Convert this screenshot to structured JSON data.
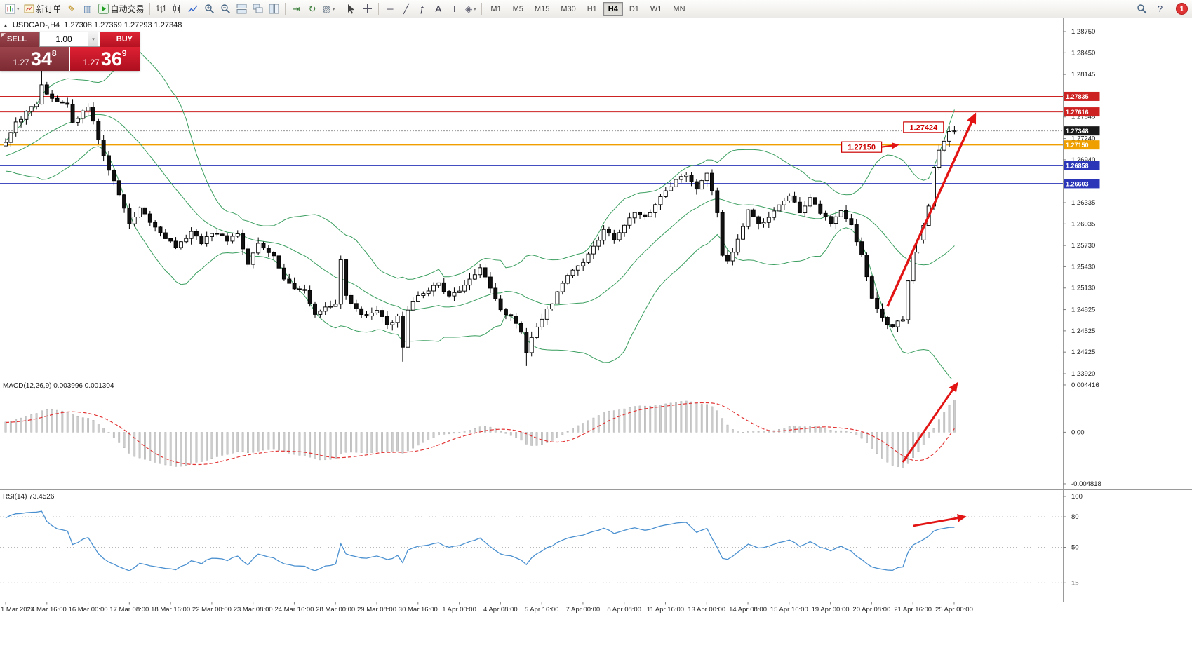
{
  "colors": {
    "resistance_red": "#cc2222",
    "pivot_orange": "#efa000",
    "support_blue": "#2a35b8",
    "bollinger_green": "#3a9e5f",
    "rsi_blue": "#4a90d0",
    "macd_signal_red": "#e23333",
    "macd_hist_silver": "#cdcdcd",
    "arrow_red": "#e21414",
    "bid_label_bg": "#1a1a1a"
  },
  "toolbar": {
    "items": [
      {
        "kind": "icon",
        "name": "new-chart",
        "dropdown": true
      },
      {
        "kind": "icon",
        "name": "new-order",
        "label": "新订单"
      },
      {
        "kind": "icon",
        "name": "metaeditor"
      },
      {
        "kind": "icon",
        "name": "data-window"
      },
      {
        "kind": "icon",
        "name": "autotrading",
        "label": "自动交易"
      },
      {
        "kind": "sep"
      },
      {
        "kind": "icon",
        "name": "bar-chart"
      },
      {
        "kind": "icon",
        "name": "candle-chart"
      },
      {
        "kind": "icon",
        "name": "line-chart"
      },
      {
        "kind": "icon",
        "name": "zoom-in"
      },
      {
        "kind": "icon",
        "name": "zoom-out"
      },
      {
        "kind": "icon",
        "name": "tile-windows"
      },
      {
        "kind": "icon",
        "name": "cascade-windows"
      },
      {
        "kind": "icon",
        "name": "arrange-windows"
      },
      {
        "kind": "sep"
      },
      {
        "kind": "icon",
        "name": "chart-shift"
      },
      {
        "kind": "icon",
        "name": "auto-scroll"
      },
      {
        "kind": "icon",
        "name": "chart-properties",
        "dropdown": true
      },
      {
        "kind": "sep"
      },
      {
        "kind": "icon",
        "name": "cursor"
      },
      {
        "kind": "icon",
        "name": "crosshair"
      },
      {
        "kind": "sep"
      },
      {
        "kind": "icon",
        "name": "horizontal-line"
      },
      {
        "kind": "icon",
        "name": "trendline"
      },
      {
        "kind": "icon",
        "name": "fibonacci"
      },
      {
        "kind": "icon",
        "name": "text"
      },
      {
        "kind": "icon",
        "name": "text-label"
      },
      {
        "kind": "icon",
        "name": "shapes",
        "dropdown": true
      },
      {
        "kind": "sep"
      }
    ],
    "timeframes": [
      "M1",
      "M5",
      "M15",
      "M30",
      "H1",
      "H4",
      "D1",
      "W1",
      "MN"
    ],
    "active_timeframe": "H4",
    "right_items": [
      "search",
      "help"
    ],
    "notification_count": "1"
  },
  "chart_header": {
    "symbol_period": "USDCAD-,H4",
    "ohlc": "1.27308 1.27369 1.27293 1.27348"
  },
  "trade_panel": {
    "sell_label": "SELL",
    "buy_label": "BUY",
    "volume": "1.00",
    "sell_price_prefix": "1.27",
    "sell_price_big": "34",
    "sell_price_sup": "8",
    "buy_price_prefix": "1.27",
    "buy_price_big": "36",
    "buy_price_sup": "9"
  },
  "time_axis": {
    "labels": [
      "1 Mar 2022",
      "14 Mar 16:00",
      "16 Mar 00:00",
      "17 Mar 08:00",
      "18 Mar 16:00",
      "22 Mar 00:00",
      "23 Mar 08:00",
      "24 Mar 16:00",
      "28 Mar 00:00",
      "29 Mar 08:00",
      "30 Mar 16:00",
      "1 Apr 00:00",
      "4 Apr 08:00",
      "5 Apr 16:00",
      "7 Apr 00:00",
      "8 Apr 08:00",
      "11 Apr 16:00",
      "13 Apr 00:00",
      "14 Apr 08:00",
      "15 Apr 16:00",
      "19 Apr 00:00",
      "20 Apr 08:00",
      "21 Apr 16:00",
      "25 Apr 00:00"
    ]
  },
  "chart_data": [
    {
      "type": "candlestick",
      "symbol": "USDCAD-",
      "timeframe": "H4",
      "overlay_indicator": "Bollinger Bands",
      "bollinger": {
        "period": 20,
        "deviations": 2
      },
      "price_axis_ticks": [
        "1.28750",
        "1.28450",
        "1.28145",
        "1.27845",
        "1.27545",
        "1.27240",
        "1.26940",
        "1.26635",
        "1.26335",
        "1.26035",
        "1.25730",
        "1.25430",
        "1.25130",
        "1.24825",
        "1.24525",
        "1.24225",
        "1.23920"
      ],
      "price_axis_range": [
        1.2392,
        1.2875
      ],
      "hlines": [
        {
          "price": 1.27835,
          "label": "1.27835",
          "color": "#cc2222"
        },
        {
          "price": 1.27616,
          "label": "1.27616",
          "color": "#cc2222"
        },
        {
          "price": 1.2715,
          "label": "1.27150",
          "color": "#efa000"
        },
        {
          "price": 1.26858,
          "label": "1.26858",
          "color": "#2a35b8"
        },
        {
          "price": 1.26603,
          "label": "1.26603",
          "color": "#2a35b8"
        }
      ],
      "bid_price": {
        "value": 1.27348,
        "label": "1.27348"
      },
      "price_path": [
        [
          0,
          1.2718
        ],
        [
          2,
          1.2745
        ],
        [
          4,
          1.2762
        ],
        [
          6,
          1.2772
        ],
        [
          7,
          1.2798
        ],
        [
          8,
          1.2787
        ],
        [
          10,
          1.2777
        ],
        [
          12,
          1.2771
        ],
        [
          13,
          1.2748
        ],
        [
          15,
          1.2761
        ],
        [
          16,
          1.2769
        ],
        [
          18,
          1.2724
        ],
        [
          20,
          1.2681
        ],
        [
          22,
          1.2645
        ],
        [
          24,
          1.2604
        ],
        [
          26,
          1.2627
        ],
        [
          28,
          1.2603
        ],
        [
          30,
          1.2592
        ],
        [
          33,
          1.2572
        ],
        [
          36,
          1.2591
        ],
        [
          38,
          1.2577
        ],
        [
          40,
          1.2591
        ],
        [
          43,
          1.2581
        ],
        [
          45,
          1.2587
        ],
        [
          47,
          1.2549
        ],
        [
          49,
          1.2575
        ],
        [
          52,
          1.2556
        ],
        [
          54,
          1.2523
        ],
        [
          56,
          1.2512
        ],
        [
          58,
          1.2511
        ],
        [
          60,
          1.2473
        ],
        [
          62,
          1.2488
        ],
        [
          64,
          1.2491
        ],
        [
          65,
          1.2554
        ],
        [
          66,
          1.2503
        ],
        [
          68,
          1.2482
        ],
        [
          70,
          1.2471
        ],
        [
          72,
          1.2481
        ],
        [
          74,
          1.2463
        ],
        [
          76,
          1.2471
        ],
        [
          77,
          1.2432
        ],
        [
          78,
          1.2481
        ],
        [
          80,
          1.2501
        ],
        [
          82,
          1.2511
        ],
        [
          84,
          1.2521
        ],
        [
          86,
          1.2501
        ],
        [
          88,
          1.2511
        ],
        [
          90,
          1.2525
        ],
        [
          92,
          1.2541
        ],
        [
          94,
          1.2511
        ],
        [
          96,
          1.2481
        ],
        [
          98,
          1.2471
        ],
        [
          100,
          1.2451
        ],
        [
          101,
          1.2421
        ],
        [
          102,
          1.2441
        ],
        [
          104,
          1.2471
        ],
        [
          106,
          1.2491
        ],
        [
          108,
          1.2521
        ],
        [
          110,
          1.2541
        ],
        [
          112,
          1.2551
        ],
        [
          114,
          1.2571
        ],
        [
          116,
          1.2595
        ],
        [
          118,
          1.2581
        ],
        [
          120,
          1.2601
        ],
        [
          122,
          1.2621
        ],
        [
          124,
          1.2611
        ],
        [
          126,
          1.2631
        ],
        [
          128,
          1.2651
        ],
        [
          130,
          1.2665
        ],
        [
          132,
          1.2671
        ],
        [
          134,
          1.2651
        ],
        [
          136,
          1.2677
        ],
        [
          138,
          1.2621
        ],
        [
          139,
          1.2561
        ],
        [
          140,
          1.2551
        ],
        [
          142,
          1.2581
        ],
        [
          144,
          1.2621
        ],
        [
          146,
          1.2601
        ],
        [
          148,
          1.2611
        ],
        [
          150,
          1.2631
        ],
        [
          152,
          1.2645
        ],
        [
          154,
          1.2621
        ],
        [
          156,
          1.2641
        ],
        [
          158,
          1.2621
        ],
        [
          160,
          1.2605
        ],
        [
          162,
          1.2621
        ],
        [
          164,
          1.2601
        ],
        [
          166,
          1.2561
        ],
        [
          168,
          1.2501
        ],
        [
          170,
          1.2471
        ],
        [
          172,
          1.2457
        ],
        [
          174,
          1.2471
        ],
        [
          175,
          1.2521
        ],
        [
          176,
          1.2561
        ],
        [
          177,
          1.2581
        ],
        [
          178,
          1.2601
        ],
        [
          179,
          1.2631
        ],
        [
          180,
          1.2681
        ],
        [
          181,
          1.2709
        ],
        [
          182,
          1.2721
        ],
        [
          183,
          1.2736
        ],
        [
          184,
          1.2735
        ]
      ],
      "wick_overrides": [
        [
          7,
          "high",
          1.2821
        ],
        [
          77,
          "low",
          1.2409
        ],
        [
          101,
          "low",
          1.2403
        ],
        [
          184,
          "high",
          1.2742
        ]
      ],
      "annotations": [
        {
          "text": "1.27424",
          "bar": 178,
          "price": 1.274
        },
        {
          "text": "1.27150",
          "bar": 166,
          "price": 1.2712,
          "pointer": {
            "bar": 173,
            "price": 1.2715
          }
        }
      ],
      "trend_arrow": {
        "from_bar": 171,
        "from_price": 1.2487,
        "to_bar": 188,
        "to_price": 1.2758
      }
    },
    {
      "type": "macd",
      "label": "MACD(12,26,9) 0.003996 0.001304",
      "params": {
        "fast": 12,
        "slow": 26,
        "signal": 9
      },
      "current_macd": "0.003996",
      "current_signal": "0.001304",
      "axis_ticks": [
        "0.004416",
        "0.00",
        "-0.004818"
      ],
      "axis_values": [
        0.004416,
        0,
        -0.004818
      ],
      "trend_arrow": {
        "from_bar": 174,
        "from_value": -0.0028,
        "to_bar": 184.5,
        "to_value": 0.00455
      }
    },
    {
      "type": "rsi",
      "label": "RSI(14) 73.4526",
      "period": 14,
      "current_value": "73.4526",
      "axis_ticks": [
        "100",
        "80",
        "50",
        "15"
      ],
      "axis_values": [
        100,
        80,
        50,
        15
      ],
      "levels": [
        80,
        50,
        15
      ],
      "range": [
        0,
        100
      ],
      "trend_arrow": {
        "from_bar": 176,
        "from_value": 71,
        "to_bar": 186,
        "to_value": 80
      }
    }
  ]
}
